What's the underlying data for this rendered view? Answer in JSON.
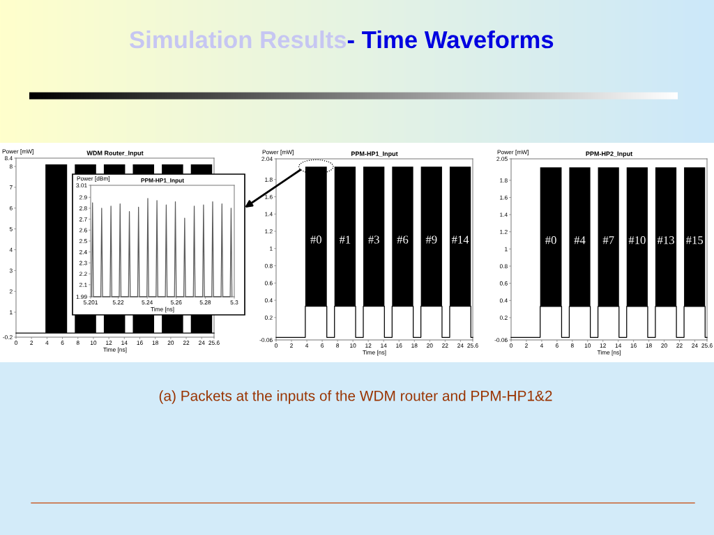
{
  "chart_data": [
    {
      "type": "other",
      "title": "Simulation Results",
      "subtitle": "- Time Waveforms",
      "annotations": [
        "(a) Packets at the inputs of the WDM router and PPM-HP1&2"
      ]
    },
    {
      "type": "line",
      "title": "WDM Router_Input",
      "xlabel": "Time [ns]",
      "ylabel": "Power [mW]",
      "xlim": [
        0,
        25.6
      ],
      "ylim": [
        -0.2,
        8.4
      ],
      "xticks": [
        0,
        2,
        4,
        6,
        8,
        10,
        12,
        14,
        16,
        18,
        20,
        22,
        24,
        25.6
      ],
      "yticks": [
        -0.2,
        1,
        2,
        3,
        4,
        5,
        6,
        7,
        8,
        8.4
      ],
      "series": [
        {
          "color": "#000000",
          "x": [
            0,
            3.8,
            3.8,
            6.6,
            6.6,
            7.6,
            7.6,
            10.35,
            10.35,
            11.35,
            11.35,
            14.1,
            14.1,
            15.1,
            15.1,
            17.85,
            17.85,
            18.85,
            18.85,
            21.6,
            21.6,
            22.6,
            22.6,
            25.35,
            25.35,
            25.6
          ],
          "values": [
            0,
            0,
            0,
            0,
            0,
            0,
            0,
            0,
            0,
            0,
            0,
            0,
            0,
            0,
            0,
            0,
            0,
            0,
            0,
            0,
            0,
            0,
            0,
            0,
            0,
            0
          ],
          "lower": [
            null,
            null,
            0,
            0,
            null,
            null,
            0,
            0,
            null,
            null,
            0,
            0,
            null,
            null,
            0,
            0,
            null,
            null,
            0,
            0,
            null,
            null,
            0,
            0,
            null,
            null
          ],
          "upper": [
            null,
            null,
            8.1,
            8.1,
            null,
            null,
            8.1,
            8.1,
            null,
            null,
            8.1,
            8.1,
            null,
            null,
            8.1,
            8.1,
            null,
            null,
            8.1,
            8.1,
            null,
            null,
            8.1,
            8.1,
            null,
            null
          ]
        }
      ]
    },
    {
      "type": "line",
      "title": "PPM-HP1_Input",
      "xlabel": "Time [ns]",
      "ylabel": "Power [dBm]",
      "xlim": [
        5.201,
        5.3
      ],
      "ylim": [
        1.99,
        3.01
      ],
      "xticks": [
        5.201,
        5.22,
        5.24,
        5.26,
        5.28,
        5.3
      ],
      "yticks": [
        1.99,
        2.1,
        2.2,
        2.3,
        2.4,
        2.5,
        2.6,
        2.7,
        2.8,
        2.9,
        3.01
      ],
      "series": [
        {
          "color": "#5a5a5a",
          "x": [
            5.2017,
            5.2023,
            5.2029,
            5.208,
            5.2086,
            5.2092,
            5.2144,
            5.215,
            5.2156,
            5.2207,
            5.2213,
            5.2219,
            5.2271,
            5.2277,
            5.2283,
            5.2334,
            5.234,
            5.2346,
            5.2398,
            5.2404,
            5.241,
            5.2461,
            5.2467,
            5.2473,
            5.2525,
            5.2531,
            5.2537,
            5.2588,
            5.2594,
            5.26,
            5.2652,
            5.2658,
            5.2664,
            5.2718,
            5.2724,
            5.273,
            5.2782,
            5.2788,
            5.2794,
            5.2845,
            5.2851,
            5.2857,
            5.2909,
            5.2915,
            5.2921,
            5.2972,
            5.2978,
            5.2984
          ],
          "values": [
            1.99,
            2.85,
            1.99,
            1.99,
            2.8,
            1.99,
            1.99,
            2.82,
            1.99,
            1.99,
            2.84,
            1.99,
            1.99,
            2.77,
            1.99,
            1.99,
            2.81,
            1.99,
            1.99,
            2.89,
            1.99,
            1.99,
            2.87,
            1.99,
            1.99,
            2.83,
            1.99,
            1.99,
            2.86,
            1.99,
            1.99,
            2.71,
            1.99,
            1.99,
            2.82,
            1.99,
            1.99,
            2.83,
            1.99,
            1.99,
            2.86,
            1.99,
            1.99,
            2.84,
            1.99,
            1.99,
            2.8,
            1.99
          ]
        }
      ]
    },
    {
      "type": "line",
      "title": "PPM-HP1_Input",
      "xlabel": "Time [ns]",
      "ylabel": "Power [mW]",
      "xlim": [
        0,
        25.6
      ],
      "ylim": [
        -0.06,
        2.04
      ],
      "xticks": [
        0,
        2,
        4,
        6,
        8,
        10,
        12,
        14,
        16,
        18,
        20,
        22,
        24,
        25.6
      ],
      "yticks": [
        -0.06,
        0.2,
        0.4,
        0.6,
        0.8,
        1,
        1.2,
        1.4,
        1.6,
        1.8,
        2.04
      ],
      "series": [
        {
          "color": "#000000",
          "x": [
            0,
            3.8,
            3.8,
            6.6,
            6.6,
            7.6,
            7.6,
            10.35,
            10.35,
            11.35,
            11.35,
            14.1,
            14.1,
            15.1,
            15.1,
            17.85,
            17.85,
            18.85,
            18.85,
            21.6,
            21.6,
            22.6,
            22.6,
            25.35,
            25.35,
            25.6
          ],
          "values": [
            -0.03,
            -0.03,
            0.33,
            0.33,
            -0.03,
            -0.03,
            0.33,
            0.33,
            -0.03,
            -0.03,
            0.33,
            0.33,
            -0.03,
            -0.03,
            0.33,
            0.33,
            -0.03,
            -0.03,
            0.33,
            0.33,
            -0.03,
            -0.03,
            0.33,
            0.33,
            -0.03,
            -0.03
          ],
          "lower": [
            null,
            null,
            0.33,
            0.33,
            null,
            null,
            0.33,
            0.33,
            null,
            null,
            0.33,
            0.33,
            null,
            null,
            0.33,
            0.33,
            null,
            null,
            0.33,
            0.33,
            null,
            null,
            0.33,
            0.33,
            null,
            null
          ],
          "upper": [
            null,
            null,
            1.95,
            1.95,
            null,
            null,
            1.95,
            1.95,
            null,
            null,
            1.95,
            1.95,
            null,
            null,
            1.95,
            1.95,
            null,
            null,
            1.95,
            1.95,
            null,
            null,
            1.95,
            1.95,
            null,
            null
          ]
        }
      ],
      "annotations": [
        "#0",
        "#1",
        "#3",
        "#6",
        "#9",
        "#14"
      ]
    },
    {
      "type": "line",
      "title": "PPM-HP2_Input",
      "xlabel": "Time [ns]",
      "ylabel": "Power [mW]",
      "xlim": [
        0,
        25.6
      ],
      "ylim": [
        -0.06,
        2.05
      ],
      "xticks": [
        0,
        2,
        4,
        6,
        8,
        10,
        12,
        14,
        16,
        18,
        20,
        22,
        24,
        25.6
      ],
      "yticks": [
        -0.06,
        0.2,
        0.4,
        0.6,
        0.8,
        1,
        1.2,
        1.4,
        1.6,
        1.8,
        2.05
      ],
      "series": [
        {
          "color": "#000000",
          "x": [
            0,
            3.8,
            3.8,
            6.6,
            6.6,
            7.6,
            7.6,
            10.35,
            10.35,
            11.35,
            11.35,
            14.1,
            14.1,
            15.1,
            15.1,
            17.85,
            17.85,
            18.85,
            18.85,
            21.6,
            21.6,
            22.6,
            22.6,
            25.35,
            25.35,
            25.6
          ],
          "values": [
            -0.03,
            -0.03,
            0.33,
            0.33,
            -0.03,
            -0.03,
            0.33,
            0.33,
            -0.03,
            -0.03,
            0.33,
            0.33,
            -0.03,
            -0.03,
            0.33,
            0.33,
            -0.03,
            -0.03,
            0.33,
            0.33,
            -0.03,
            -0.03,
            0.33,
            0.33,
            -0.03,
            -0.03
          ],
          "lower": [
            null,
            null,
            0.33,
            0.33,
            null,
            null,
            0.33,
            0.33,
            null,
            null,
            0.33,
            0.33,
            null,
            null,
            0.33,
            0.33,
            null,
            null,
            0.33,
            0.33,
            null,
            null,
            0.33,
            0.33,
            null,
            null
          ],
          "upper": [
            null,
            null,
            1.95,
            1.95,
            null,
            null,
            1.95,
            1.95,
            null,
            null,
            1.95,
            1.95,
            null,
            null,
            1.95,
            1.95,
            null,
            null,
            1.95,
            1.95,
            null,
            null,
            1.95,
            1.95,
            null,
            null
          ]
        }
      ],
      "annotations": [
        "#0",
        "#4",
        "#7",
        "#10",
        "#13",
        "#15"
      ]
    }
  ]
}
